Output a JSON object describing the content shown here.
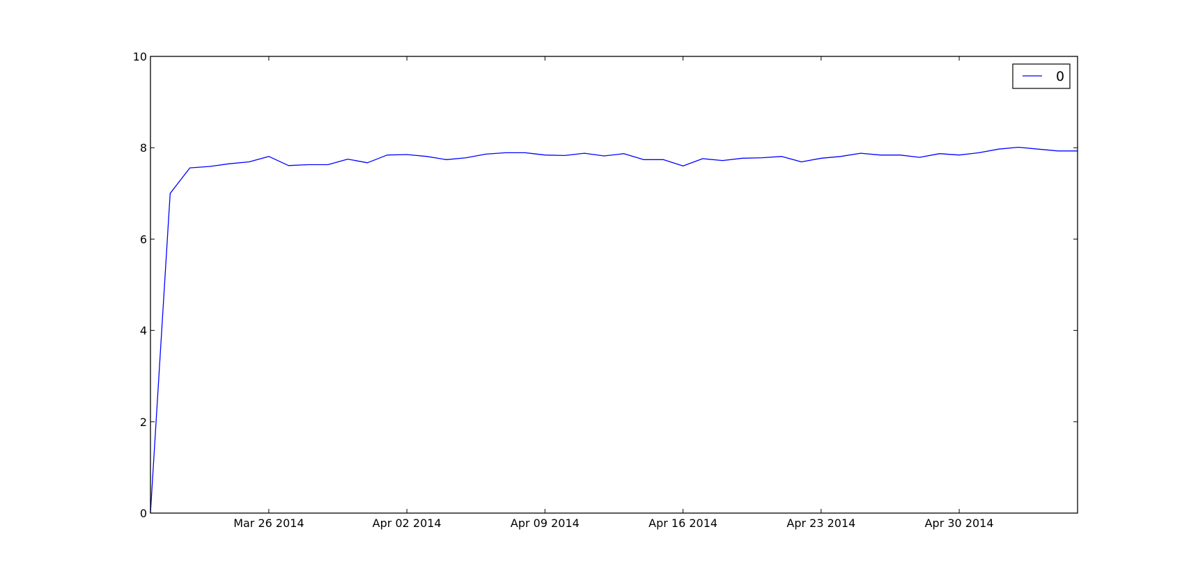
{
  "chart_data": {
    "type": "line",
    "title": "",
    "xlabel": "",
    "ylabel": "",
    "xlim": [
      "2014-03-20",
      "2014-05-06"
    ],
    "ylim": [
      0,
      10
    ],
    "yticks": [
      0,
      2,
      4,
      6,
      8,
      10
    ],
    "xticks": [
      {
        "date": "2014-03-26",
        "label": "Mar 26 2014"
      },
      {
        "date": "2014-04-02",
        "label": "Apr 02 2014"
      },
      {
        "date": "2014-04-09",
        "label": "Apr 09 2014"
      },
      {
        "date": "2014-04-16",
        "label": "Apr 16 2014"
      },
      {
        "date": "2014-04-23",
        "label": "Apr 23 2014"
      },
      {
        "date": "2014-04-30",
        "label": "Apr 30 2014"
      }
    ],
    "grid": false,
    "legend_position": "top-right",
    "series": [
      {
        "name": "0",
        "color": "#0000ff",
        "x": [
          "2014-03-20",
          "2014-03-21",
          "2014-03-22",
          "2014-03-23",
          "2014-03-24",
          "2014-03-25",
          "2014-03-26",
          "2014-03-27",
          "2014-03-28",
          "2014-03-29",
          "2014-03-30",
          "2014-03-31",
          "2014-04-01",
          "2014-04-02",
          "2014-04-03",
          "2014-04-04",
          "2014-04-05",
          "2014-04-06",
          "2014-04-07",
          "2014-04-08",
          "2014-04-09",
          "2014-04-10",
          "2014-04-11",
          "2014-04-12",
          "2014-04-13",
          "2014-04-14",
          "2014-04-15",
          "2014-04-16",
          "2014-04-17",
          "2014-04-18",
          "2014-04-19",
          "2014-04-20",
          "2014-04-21",
          "2014-04-22",
          "2014-04-23",
          "2014-04-24",
          "2014-04-25",
          "2014-04-26",
          "2014-04-27",
          "2014-04-28",
          "2014-04-29",
          "2014-04-30",
          "2014-05-01",
          "2014-05-02",
          "2014-05-03",
          "2014-05-04",
          "2014-05-05",
          "2014-05-06"
        ],
        "values": [
          0,
          7.0,
          7.56,
          7.59,
          7.65,
          7.69,
          7.81,
          7.61,
          7.63,
          7.63,
          7.75,
          7.67,
          7.84,
          7.85,
          7.81,
          7.74,
          7.78,
          7.86,
          7.89,
          7.89,
          7.84,
          7.83,
          7.88,
          7.82,
          7.87,
          7.74,
          7.74,
          7.6,
          7.76,
          7.72,
          7.77,
          7.78,
          7.81,
          7.69,
          7.77,
          7.81,
          7.88,
          7.84,
          7.84,
          7.79,
          7.87,
          7.84,
          7.89,
          7.97,
          8.01,
          7.97,
          7.93,
          7.93
        ]
      }
    ]
  }
}
